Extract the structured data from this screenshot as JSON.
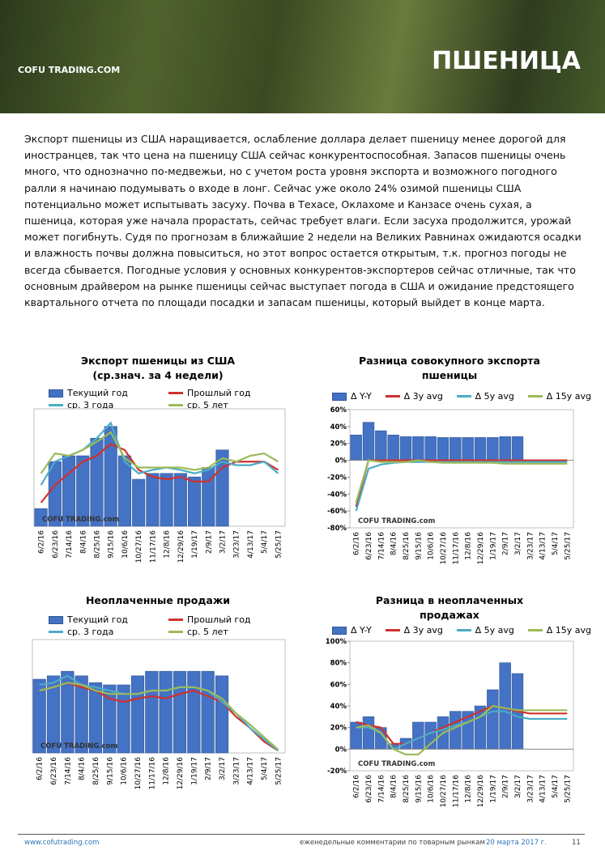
{
  "header": {
    "logo": "COFU TRADING.COM",
    "title": "ПШЕНИЦА"
  },
  "text": "Экспорт пшеницы из США наращивается, ослабление доллара делает пшеницу менее дорогой для иностранцев, так что цена на пшеницу США сейчас конкурентоспособная. Запасов пшеницы очень много, что однозначно по-медвежьи, но с учетом роста уровня экспорта и возможного погодного ралли я начинаю подумывать о входе в лонг. Сейчас уже около 24% озимой пшеницы США потенциально может испытывать засуху. Почва в Техасе, Оклахоме и Канзасе очень сухая, а пшеница, которая уже начала прорастать, сейчас требует влаги. Если засуха продолжится, урожай может погибнуть. Судя по прогнозам в ближайшие 2 недели на Великих Равнинах ожидаются осадки и влажность почвы должна повыситься, но этот вопрос остается открытым, т.к. прогноз погоды не всегда сбывается. Погодные условия у основных конкурентов-экспортеров сейчас отличные, так что основным драйвером на рынке пшеницы сейчас выступает погода в США и ожидание предстоящего квартального отчета по площади посадки и запасам пшеницы, который выйдет в конце марта.",
  "chart_data": [
    {
      "type": "combo",
      "title": "Экспорт пшеницы из США",
      "subtitle": "(ср.знач. за 4 недели)",
      "watermark": "COFU TRADING.com",
      "categories": [
        "6/2/16",
        "6/23/16",
        "7/14/16",
        "8/4/16",
        "8/25/16",
        "9/15/16",
        "10/6/16",
        "10/27/16",
        "11/17/16",
        "12/8/16",
        "12/29/16",
        "1/19/17",
        "2/9/17",
        "3/2/17",
        "3/23/17",
        "4/13/17",
        "5/4/17",
        "5/25/17"
      ],
      "ylim": [
        0,
        100
      ],
      "grid": false,
      "series": [
        {
          "name": "Текущий год",
          "kind": "bar",
          "color": "#4472c4",
          "values": [
            15,
            55,
            60,
            60,
            75,
            85,
            60,
            40,
            45,
            45,
            45,
            42,
            50,
            65,
            null,
            null,
            null,
            null
          ]
        },
        {
          "name": "Прошлый год",
          "kind": "line",
          "color": "#d0312d",
          "values": [
            20,
            35,
            45,
            55,
            60,
            70,
            65,
            48,
            42,
            40,
            42,
            38,
            38,
            50,
            55,
            55,
            55,
            48
          ]
        },
        {
          "name": "ср. 3 года",
          "kind": "line",
          "color": "#4bacc6",
          "values": [
            35,
            55,
            60,
            65,
            75,
            88,
            55,
            45,
            48,
            50,
            48,
            45,
            48,
            55,
            52,
            52,
            55,
            45
          ]
        },
        {
          "name": "ср. 5 лет",
          "kind": "line",
          "color": "#9bbb59",
          "values": [
            45,
            62,
            60,
            65,
            72,
            80,
            58,
            50,
            50,
            50,
            50,
            48,
            50,
            58,
            55,
            60,
            62,
            55
          ]
        }
      ]
    },
    {
      "type": "combo",
      "title": "Разница совокупного экспорта пшеницы",
      "watermark": "COFU TRADING.com",
      "categories": [
        "6/2/16",
        "6/23/16",
        "7/14/16",
        "8/4/16",
        "8/25/16",
        "9/15/16",
        "10/6/16",
        "10/27/16",
        "11/17/16",
        "12/8/16",
        "12/29/16",
        "1/19/17",
        "2/9/17",
        "3/2/17",
        "3/23/17",
        "4/13/17",
        "5/4/17",
        "5/25/17"
      ],
      "ylim": [
        -80,
        60
      ],
      "grid": false,
      "yticks": [
        {
          "value": -80,
          "label": "-80%"
        },
        {
          "value": -60,
          "label": "-60%"
        },
        {
          "value": -40,
          "label": "-40%"
        },
        {
          "value": -20,
          "label": "-20%"
        },
        {
          "value": 0,
          "label": "0%"
        },
        {
          "value": 20,
          "label": "20%"
        },
        {
          "value": 40,
          "label": "40%"
        },
        {
          "value": 60,
          "label": "60%"
        }
      ],
      "series": [
        {
          "name": "Δ Y-Y",
          "kind": "bar",
          "color": "#4472c4",
          "values": [
            30,
            45,
            35,
            30,
            28,
            28,
            28,
            27,
            27,
            27,
            27,
            27,
            28,
            28,
            null,
            null,
            null,
            null
          ]
        },
        {
          "name": "Δ 3y avg",
          "kind": "line",
          "color": "#d0312d",
          "values": [
            -55,
            0,
            0,
            0,
            0,
            0,
            0,
            0,
            0,
            0,
            0,
            0,
            0,
            0,
            0,
            0,
            0,
            0
          ]
        },
        {
          "name": "Δ 5y avg",
          "kind": "line",
          "color": "#4bacc6",
          "values": [
            -60,
            -10,
            -5,
            -3,
            -2,
            -2,
            -2,
            -2,
            -2,
            -2,
            -2,
            -2,
            -2,
            -2,
            -2,
            -2,
            -2,
            -2
          ]
        },
        {
          "name": "Δ 15y avg",
          "kind": "line",
          "color": "#9bbb59",
          "values": [
            -50,
            0,
            -2,
            -2,
            -2,
            0,
            -2,
            -3,
            -3,
            -3,
            -3,
            -3,
            -4,
            -4,
            -4,
            -4,
            -4,
            -4
          ]
        }
      ]
    },
    {
      "type": "combo",
      "title": "Неоплаченные продажи",
      "watermark": "COFU TRADING.com",
      "categories": [
        "6/2/16",
        "6/23/16",
        "7/14/16",
        "8/4/16",
        "8/25/16",
        "9/15/16",
        "10/6/16",
        "10/27/16",
        "11/17/16",
        "12/8/16",
        "12/29/16",
        "1/19/17",
        "2/9/17",
        "3/2/17",
        "3/23/17",
        "4/13/17",
        "5/4/17",
        "5/25/17"
      ],
      "ylim": [
        0,
        100
      ],
      "grid": false,
      "series": [
        {
          "name": "Текущий год",
          "kind": "bar",
          "color": "#4472c4",
          "values": [
            65,
            68,
            72,
            68,
            62,
            60,
            60,
            68,
            72,
            72,
            72,
            72,
            72,
            68,
            null,
            null,
            null,
            null
          ]
        },
        {
          "name": "Прошлый год",
          "kind": "line",
          "color": "#d0312d",
          "values": [
            55,
            58,
            62,
            58,
            55,
            48,
            45,
            48,
            50,
            48,
            52,
            55,
            50,
            45,
            32,
            22,
            10,
            2
          ]
        },
        {
          "name": "ср. 3 года",
          "kind": "line",
          "color": "#4bacc6",
          "values": [
            60,
            62,
            68,
            60,
            58,
            55,
            52,
            52,
            55,
            55,
            58,
            58,
            55,
            45,
            35,
            22,
            12,
            2
          ]
        },
        {
          "name": "ср. 5 лет",
          "kind": "line",
          "color": "#9bbb59",
          "values": [
            55,
            58,
            62,
            60,
            55,
            52,
            52,
            52,
            55,
            55,
            58,
            58,
            55,
            48,
            35,
            25,
            14,
            3
          ]
        }
      ]
    },
    {
      "type": "combo",
      "title": "Разница в неоплаченных продажах",
      "watermark": "COFU TRADING.com",
      "categories": [
        "6/2/16",
        "6/23/16",
        "7/14/16",
        "8/4/16",
        "8/25/16",
        "9/15/16",
        "10/6/16",
        "10/27/16",
        "11/17/16",
        "12/8/16",
        "12/29/16",
        "1/19/17",
        "2/9/17",
        "3/2/17",
        "3/23/17",
        "4/13/17",
        "5/4/17",
        "5/25/17"
      ],
      "ylim": [
        -20,
        100
      ],
      "grid": false,
      "yticks": [
        {
          "value": -20,
          "label": "-20%"
        },
        {
          "value": 0,
          "label": "0%"
        },
        {
          "value": 20,
          "label": "20%"
        },
        {
          "value": 40,
          "label": "40%"
        },
        {
          "value": 60,
          "label": "60%"
        },
        {
          "value": 80,
          "label": "80%"
        },
        {
          "value": 100,
          "label": "100%"
        }
      ],
      "series": [
        {
          "name": "Δ Y-Y",
          "kind": "bar",
          "color": "#4472c4",
          "values": [
            25,
            30,
            20,
            5,
            10,
            25,
            25,
            30,
            35,
            35,
            40,
            55,
            80,
            70,
            null,
            null,
            null,
            null
          ]
        },
        {
          "name": "Δ 3y avg",
          "kind": "line",
          "color": "#d0312d",
          "values": [
            25,
            22,
            20,
            5,
            5,
            10,
            15,
            20,
            25,
            30,
            35,
            40,
            38,
            35,
            33,
            33,
            33,
            33
          ]
        },
        {
          "name": "Δ 5y avg",
          "kind": "line",
          "color": "#4bacc6",
          "values": [
            20,
            20,
            15,
            0,
            5,
            10,
            15,
            18,
            22,
            25,
            30,
            35,
            35,
            30,
            28,
            28,
            28,
            28
          ]
        },
        {
          "name": "Δ 15y avg",
          "kind": "line",
          "color": "#9bbb59",
          "values": [
            20,
            22,
            15,
            0,
            -5,
            -5,
            5,
            15,
            20,
            25,
            30,
            40,
            38,
            36,
            36,
            36,
            36,
            36
          ]
        }
      ]
    }
  ],
  "footer": {
    "url": "www.cofutrading.com",
    "caption": "еженедельные комментарии по товарным рынкам",
    "date": "20 марта 2017 г.",
    "page": "11"
  }
}
